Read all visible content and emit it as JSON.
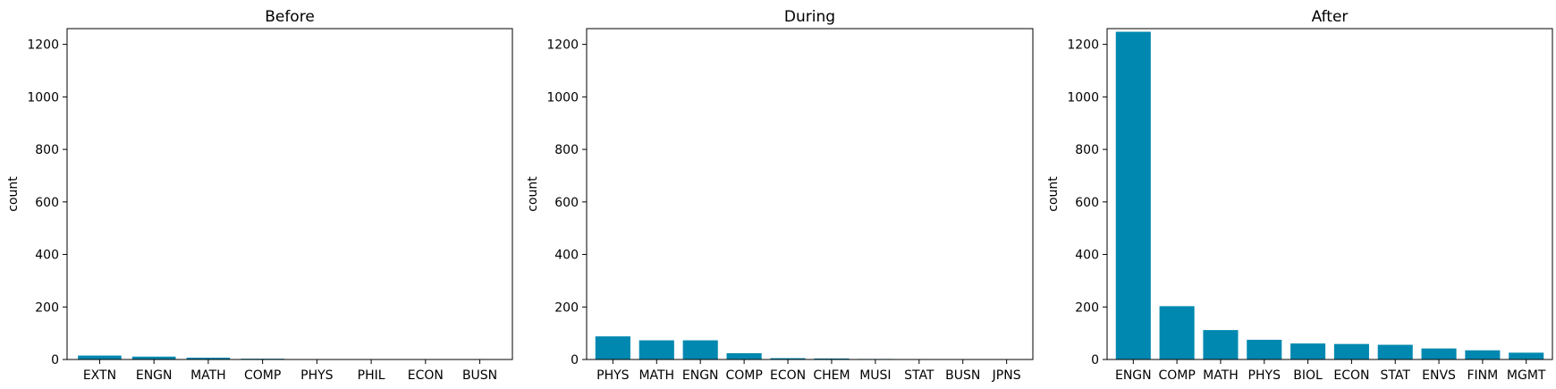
{
  "chart_data": [
    {
      "type": "bar",
      "title": "Before",
      "ylabel": "count",
      "xlabel": "",
      "ylim": [
        0,
        1260
      ],
      "yticks": [
        0,
        200,
        400,
        600,
        800,
        1000,
        1200
      ],
      "categories": [
        "EXTN",
        "ENGN",
        "MATH",
        "COMP",
        "PHYS",
        "PHIL",
        "ECON",
        "BUSN"
      ],
      "values": [
        15,
        11,
        7,
        3,
        1,
        1,
        1,
        1
      ],
      "color": "#0088b0"
    },
    {
      "type": "bar",
      "title": "During",
      "ylabel": "count",
      "xlabel": "",
      "ylim": [
        0,
        1260
      ],
      "yticks": [
        0,
        200,
        400,
        600,
        800,
        1000,
        1200
      ],
      "categories": [
        "PHYS",
        "MATH",
        "ENGN",
        "COMP",
        "ECON",
        "CHEM",
        "MUSI",
        "STAT",
        "BUSN",
        "JPNS"
      ],
      "values": [
        88,
        73,
        73,
        24,
        5,
        4,
        2,
        1,
        1,
        1
      ],
      "color": "#0088b0"
    },
    {
      "type": "bar",
      "title": "After",
      "ylabel": "count",
      "xlabel": "",
      "ylim": [
        0,
        1260
      ],
      "yticks": [
        0,
        200,
        400,
        600,
        800,
        1000,
        1200
      ],
      "categories": [
        "ENGN",
        "COMP",
        "MATH",
        "PHYS",
        "BIOL",
        "ECON",
        "STAT",
        "ENVS",
        "FINM",
        "MGMT"
      ],
      "values": [
        1248,
        203,
        112,
        75,
        61,
        59,
        56,
        42,
        35,
        26
      ],
      "color": "#0088b0"
    }
  ]
}
